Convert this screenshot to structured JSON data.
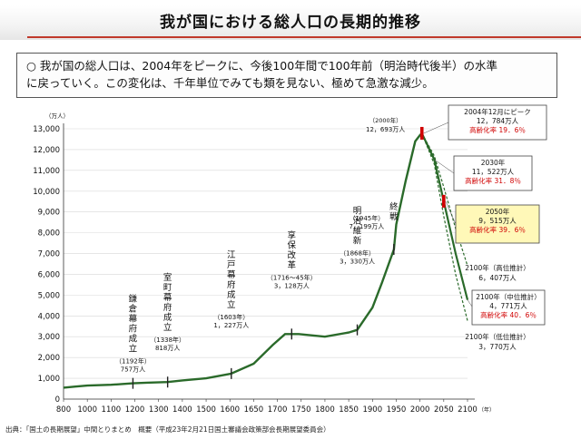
{
  "title": "我が国における総人口の長期的推移",
  "summary": {
    "bullet": "○",
    "line1": "我が国の総人口は、2004年をピークに、今後100年間で100年前（明治時代後半）の水準",
    "line2": "に戻っていく。この変化は、千年単位でみても類を見ない、極めて急激な減少。"
  },
  "source": "出典：「国土の長期展望」中間とりまとめ　概要（平成23年2月21日国土審議会政策部会長期展望委員会）",
  "colors": {
    "line": "#2a6a2a",
    "accent": "#d00000",
    "highlight_bg": "#fff8b8",
    "title_rule": "#c0392b"
  },
  "chart_data": {
    "type": "line",
    "unit_label": "（万人）",
    "year_label": "（年）",
    "xlim": [
      800,
      2100
    ],
    "ylim": [
      0,
      13000
    ],
    "x_ticks": [
      "800",
      "1000",
      "1100",
      "1200",
      "1300",
      "1400",
      "1500",
      "1600",
      "1650",
      "1700",
      "1750",
      "1800",
      "1850",
      "1900",
      "1950",
      "2000",
      "2050",
      "2100"
    ],
    "y_ticks": [
      "0",
      "1,000",
      "2,000",
      "3,000",
      "4,000",
      "5,000",
      "6,000",
      "7,000",
      "8,000",
      "9,000",
      "10,000",
      "11,000",
      "12,000",
      "13,000"
    ],
    "historical": {
      "x": [
        800,
        900,
        1000,
        1100,
        1192,
        1250,
        1338,
        1400,
        1500,
        1603,
        1650,
        1690,
        1716,
        1745,
        1800,
        1850,
        1868,
        1900,
        1920,
        1945,
        1950,
        1970,
        1990,
        2000,
        2004
      ],
      "y": [
        551,
        600,
        650,
        690,
        757,
        790,
        818,
        900,
        1000,
        1227,
        1700,
        2600,
        3128,
        3130,
        3000,
        3200,
        3330,
        4400,
        5600,
        7199,
        8400,
        10500,
        12400,
        12693,
        12784
      ]
    },
    "series": [
      {
        "name": "2100年（高位推計）",
        "x": [
          2004,
          2030,
          2050,
          2075,
          2100
        ],
        "y": [
          12784,
          11700,
          10200,
          8200,
          6407
        ],
        "style": "dashed"
      },
      {
        "name": "2100年（中位推計）",
        "x": [
          2004,
          2030,
          2050,
          2075,
          2100
        ],
        "y": [
          12784,
          11522,
          9515,
          7000,
          4771
        ],
        "style": "solid"
      },
      {
        "name": "2100年（低位推計）",
        "x": [
          2004,
          2030,
          2050,
          2075,
          2100
        ],
        "y": [
          12784,
          11300,
          8800,
          6000,
          3770
        ],
        "style": "dashed"
      }
    ],
    "period_labels": [
      {
        "text": "鎌倉幕府成立",
        "x": 1192,
        "anchor_y": 757,
        "year": "（1192年）",
        "value": "757万人"
      },
      {
        "text": "室町幕府成立",
        "x": 1338,
        "anchor_y": 818,
        "year": "（1338年）",
        "value": "818万人"
      },
      {
        "text": "江戸幕府成立",
        "x": 1603,
        "anchor_y": 1227,
        "year": "（1603年）",
        "value": "1，227万人"
      },
      {
        "text": "享保改革",
        "x": 1730,
        "anchor_y": 3128,
        "year": "（1716～45年）",
        "value": "3，128万人"
      },
      {
        "text": "明治維新",
        "x": 1868,
        "anchor_y": 3330,
        "year": "（1868年）",
        "value": "3，330万人"
      },
      {
        "text": "終戦",
        "x": 1945,
        "anchor_y": 7199,
        "year": "（1945年）",
        "value": "7，199万人"
      }
    ],
    "peak_2000": {
      "year": "（2000年）",
      "value": "12，693万人"
    },
    "callouts": {
      "peak": {
        "title": "2004年12月にピーク",
        "value": "12，784万人",
        "aging": "高齢化率 19．6％"
      },
      "y2030": {
        "title": "2030年",
        "value": "11，522万人",
        "aging": "高齢化率 31．8％"
      },
      "y2050": {
        "title": "2050年",
        "value": "9，515万人",
        "aging": "高齢化率 39．6％"
      },
      "high": {
        "title": "2100年（高位推計）",
        "value": "6，407万人"
      },
      "mid": {
        "title": "2100年（中位推計）",
        "value": "4，771万人",
        "aging": "高齢化率 40．6％"
      },
      "low": {
        "title": "2100年（低位推計）",
        "value": "3，770万人"
      }
    }
  }
}
